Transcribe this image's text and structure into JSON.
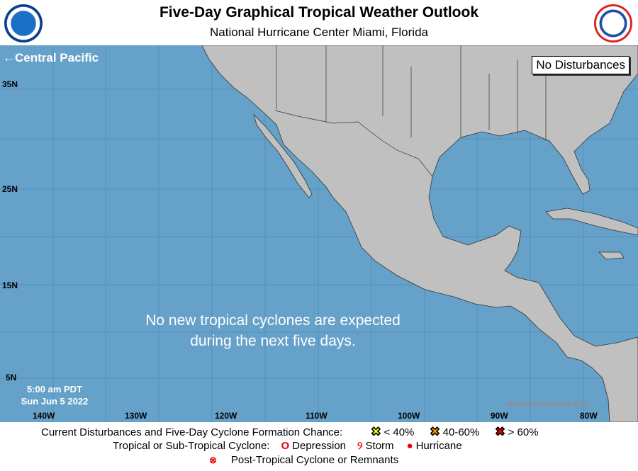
{
  "header": {
    "title": "Five-Day Graphical Tropical Weather Outlook",
    "subtitle": "National Hurricane Center  Miami, Florida",
    "left_logo": "NOAA",
    "right_logo": "National Weather Service"
  },
  "map": {
    "central_pacific_link": "←Central Pacific",
    "status_box": "No Disturbances",
    "message_line1": "No new tropical cyclones are expected",
    "message_line2": "during the next five days.",
    "time": "5:00 am PDT",
    "date": "Sun Jun 5 2022",
    "website": "www.hurricanes.gov",
    "lat_labels": [
      "35N",
      "25N",
      "15N",
      "5N"
    ],
    "lon_labels": [
      "140W",
      "130W",
      "120W",
      "110W",
      "100W",
      "90W",
      "80W"
    ],
    "colors": {
      "ocean": "#65a1c8",
      "land": "#c0c0c0"
    }
  },
  "legend": {
    "formation_label": "Current Disturbances and Five-Day Cyclone Formation Chance:",
    "low": "< 40%",
    "medium": "40-60%",
    "high": "> 60%",
    "cyclone_label": "Tropical or Sub-Tropical Cyclone:",
    "depression": "Depression",
    "storm": "Storm",
    "hurricane": "Hurricane",
    "post_tropical": "Post-Tropical Cyclone or Remnants",
    "colors": {
      "low": "#ffff00",
      "medium": "#ff9900",
      "high": "#ff0000"
    }
  }
}
